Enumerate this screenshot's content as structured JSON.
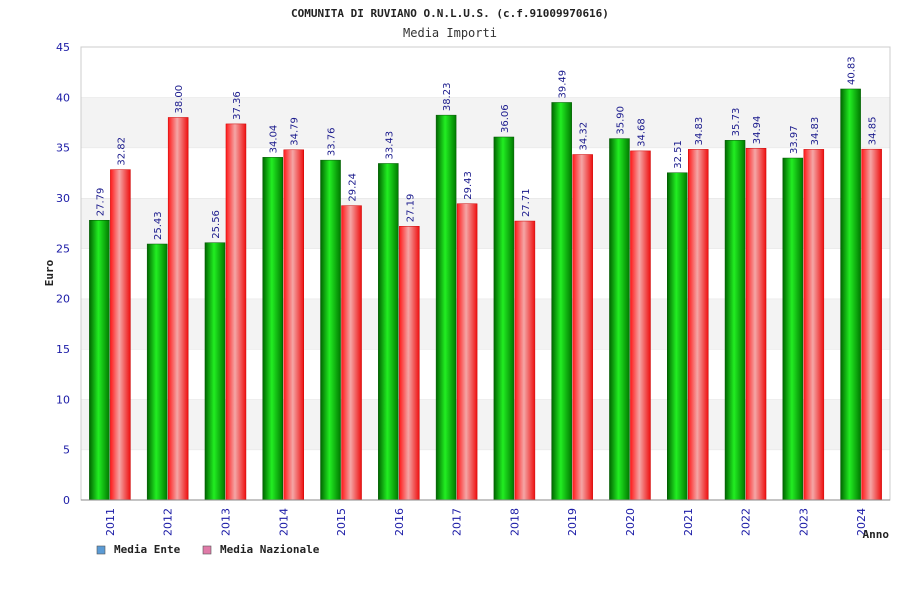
{
  "chart_data": {
    "type": "bar",
    "title": "COMUNITA DI RUVIANO O.N.L.U.S. (c.f.91009970616)",
    "subtitle": "Media Importi",
    "xlabel": "Anno",
    "ylabel": "Euro",
    "ylim": [
      0,
      45
    ],
    "yticks": [
      0,
      5,
      10,
      15,
      20,
      25,
      30,
      35,
      40,
      45
    ],
    "grid": "horizontal-bands",
    "legend_position": "bottom-left",
    "categories": [
      "2011",
      "2012",
      "2013",
      "2014",
      "2015",
      "2016",
      "2017",
      "2018",
      "2019",
      "2020",
      "2021",
      "2022",
      "2023",
      "2024"
    ],
    "series": [
      {
        "name": "Media Ente",
        "color": "#00cc00",
        "legend_color": "#5b9bd5",
        "values": [
          27.79,
          25.43,
          25.56,
          34.04,
          33.76,
          33.43,
          38.23,
          36.06,
          39.49,
          35.9,
          32.51,
          35.73,
          33.97,
          40.83
        ],
        "labels": [
          "27.79",
          "25.43",
          "25.56",
          "34.04",
          "33.76",
          "33.43",
          "38.23",
          "36.06",
          "39.49",
          "35.90",
          "32.51",
          "35.73",
          "33.97",
          "40.83"
        ]
      },
      {
        "name": "Media Nazionale",
        "color": "#ff2020",
        "legend_color": "#e07aa8",
        "values": [
          32.82,
          38.0,
          37.36,
          34.79,
          29.24,
          27.19,
          29.43,
          27.71,
          34.32,
          34.68,
          34.83,
          34.94,
          34.83,
          34.85
        ],
        "labels": [
          "32.82",
          "38.00",
          "37.36",
          "34.79",
          "29.24",
          "27.19",
          "29.43",
          "27.71",
          "34.32",
          "34.68",
          "34.83",
          "34.94",
          "34.83",
          "34.85"
        ]
      }
    ]
  }
}
